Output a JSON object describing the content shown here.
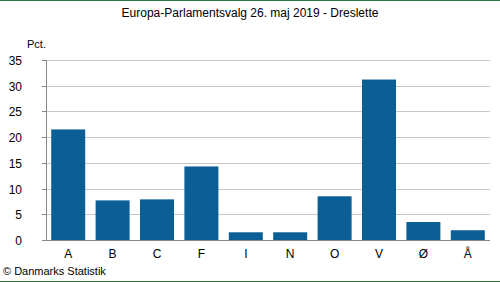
{
  "chart_data": {
    "type": "bar",
    "title": "Europa-Parlamentsvalg 26. maj 2019 - Dreslette",
    "y_label": "Pct.",
    "source": "© Danmarks Statistik",
    "categories": [
      "A",
      "B",
      "C",
      "F",
      "I",
      "N",
      "O",
      "V",
      "Ø",
      "Å"
    ],
    "values": [
      21.5,
      7.7,
      7.9,
      14.3,
      1.5,
      1.5,
      8.5,
      31.2,
      3.5,
      1.9
    ],
    "color": "#0b5f94",
    "ylim": [
      0,
      35
    ],
    "yticks": [
      0,
      5,
      10,
      15,
      20,
      25,
      30,
      35
    ],
    "grid": true
  }
}
